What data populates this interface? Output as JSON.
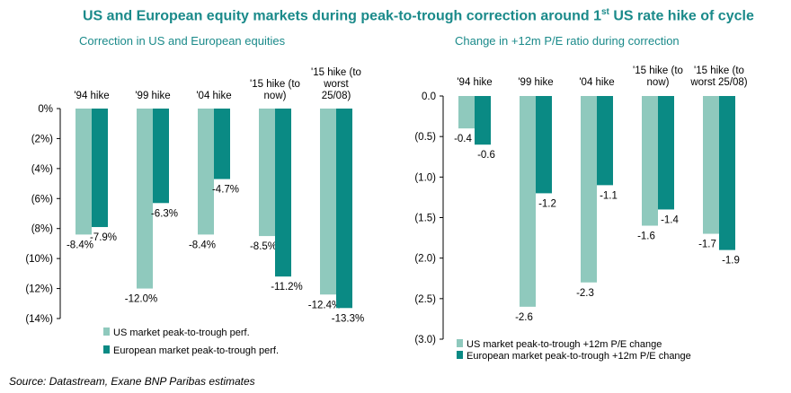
{
  "title_main": "US and European equity markets during peak-to-trough correction around 1",
  "title_sup": "st",
  "title_tail": " US rate hike of cycle",
  "source": "Source: Datastream, Exane BNP Paribas estimates",
  "colors": {
    "us": "#8fc9bd",
    "eu": "#0a8a84",
    "title": "#1a8a8a"
  },
  "chart_data": [
    {
      "type": "bar",
      "title": "Correction in US and European equities",
      "categories": [
        "'94 hike",
        "'99 hike",
        "'04 hike",
        "'15 hike (to now)",
        "'15 hike (to worst 25/08)"
      ],
      "category_lines": [
        [
          "'94 hike"
        ],
        [
          "'99 hike"
        ],
        [
          "'04 hike"
        ],
        [
          "'15 hike (to",
          "now)"
        ],
        [
          "'15 hike (to",
          "worst",
          "25/08)"
        ]
      ],
      "series": [
        {
          "name": "US market peak-to-trough perf.",
          "values": [
            -8.4,
            -12.0,
            -8.4,
            -8.5,
            -12.4
          ]
        },
        {
          "name": "European market peak-to-trough perf.",
          "values": [
            -7.9,
            -6.3,
            -4.7,
            -11.2,
            -13.3
          ]
        }
      ],
      "data_labels": [
        [
          "-8.4%",
          "-12.0%",
          "-8.4%",
          "-8.5%",
          "-12.4%"
        ],
        [
          "-7.9%",
          "-6.3%",
          "-4.7%",
          "-11.2%",
          "-13.3%"
        ]
      ],
      "yticks": [
        "0%",
        "(2%)",
        "(4%)",
        "(6%)",
        "(8%)",
        "(10%)",
        "(12%)",
        "(14%)"
      ],
      "ylim": [
        -14,
        0
      ],
      "legend": "bottom-left"
    },
    {
      "type": "bar",
      "title": "Change in +12m P/E ratio during correction",
      "categories": [
        "'94 hike",
        "'99 hike",
        "'04 hike",
        "'15 hike (to now)",
        "'15 hike (to worst 25/08)"
      ],
      "category_lines": [
        [
          "'94 hike"
        ],
        [
          "'99 hike"
        ],
        [
          "'04 hike"
        ],
        [
          "'15 hike (to",
          "now)"
        ],
        [
          "'15 hike (to",
          "worst 25/08)"
        ]
      ],
      "series": [
        {
          "name": "US market peak-to-trough +12m P/E change",
          "values": [
            -0.4,
            -2.6,
            -2.3,
            -1.6,
            -1.7
          ]
        },
        {
          "name": "European market peak-to-trough +12m P/E change",
          "values": [
            -0.6,
            -1.2,
            -1.1,
            -1.4,
            -1.9
          ]
        }
      ],
      "data_labels": [
        [
          "-0.4",
          "-2.6",
          "-2.3",
          "-1.6",
          "-1.7"
        ],
        [
          "-0.6",
          "-1.2",
          "-1.1",
          "-1.4",
          "-1.9"
        ]
      ],
      "yticks": [
        "0.0",
        "(0.5)",
        "(1.0)",
        "(1.5)",
        "(2.0)",
        "(2.5)",
        "(3.0)"
      ],
      "ylim": [
        -3,
        0
      ],
      "legend": "bottom-left"
    }
  ]
}
